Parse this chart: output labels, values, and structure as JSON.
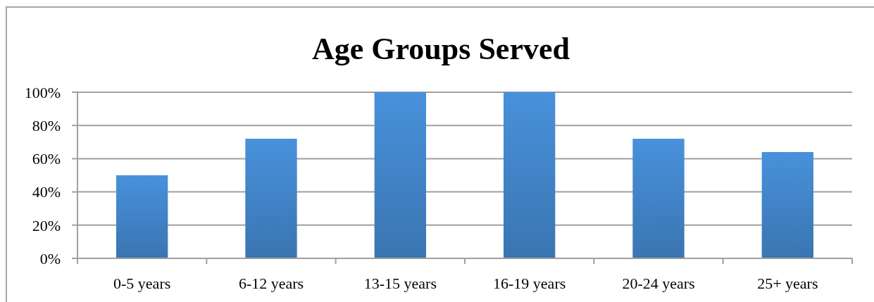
{
  "chart_data": {
    "type": "bar",
    "title": "Age Groups Served",
    "categories": [
      "0-5 years",
      "6-12 years",
      "13-15 years",
      "16-19 years",
      "20-24 years",
      "25+ years"
    ],
    "values": [
      50,
      72,
      100,
      100,
      72,
      64
    ],
    "color": "#4285c8",
    "ylim": [
      0,
      100
    ],
    "yticks": [
      {
        "value": 0,
        "label": "0%"
      },
      {
        "value": 20,
        "label": "20%"
      },
      {
        "value": 40,
        "label": "40%"
      },
      {
        "value": 60,
        "label": "60%"
      },
      {
        "value": 80,
        "label": "80%"
      },
      {
        "value": 100,
        "label": "100%"
      }
    ],
    "grid": "y"
  }
}
